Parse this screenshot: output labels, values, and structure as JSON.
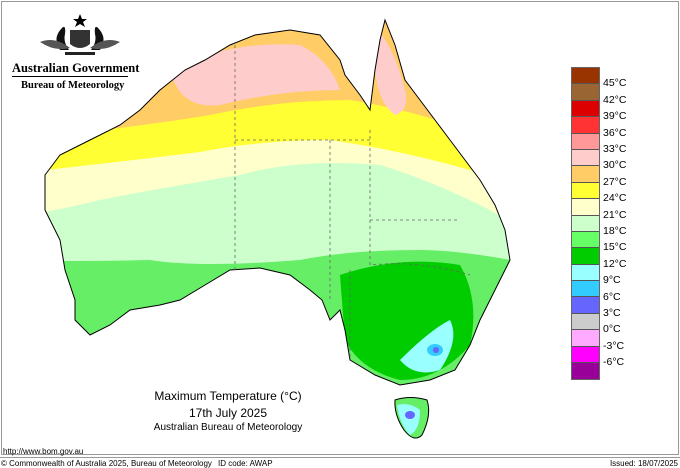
{
  "header": {
    "government": "Australian Government",
    "bureau": "Bureau of Meteorology",
    "logo": "commonwealth-coat-of-arms"
  },
  "map": {
    "title": "Maximum Temperature (°C)",
    "date": "17th July 2025",
    "source": "Australian Bureau of Meteorology",
    "url": "http://www.bom.gov.au"
  },
  "legend": {
    "colors": [
      "#993300",
      "#996633",
      "#dd0000",
      "#ff3333",
      "#ff9999",
      "#ffcccc",
      "#ffcc66",
      "#ffff33",
      "#ffffcc",
      "#ccffcc",
      "#66ff66",
      "#00cc00",
      "#99ffff",
      "#33ccff",
      "#6666ff",
      "#cccccc",
      "#ffaaff",
      "#ff00ff",
      "#990099"
    ],
    "labels": [
      "45°C",
      "42°C",
      "39°C",
      "36°C",
      "33°C",
      "30°C",
      "27°C",
      "24°C",
      "21°C",
      "18°C",
      "15°C",
      "12°C",
      "9°C",
      "6°C",
      "3°C",
      "0°C",
      "-3°C",
      "-6°C"
    ]
  },
  "footer": {
    "copyright": "© Commonwealth of Australia 2025, Bureau of Meteorology",
    "id_code": "ID code: AWAP",
    "issued": "Issued: 18/07/2025"
  }
}
